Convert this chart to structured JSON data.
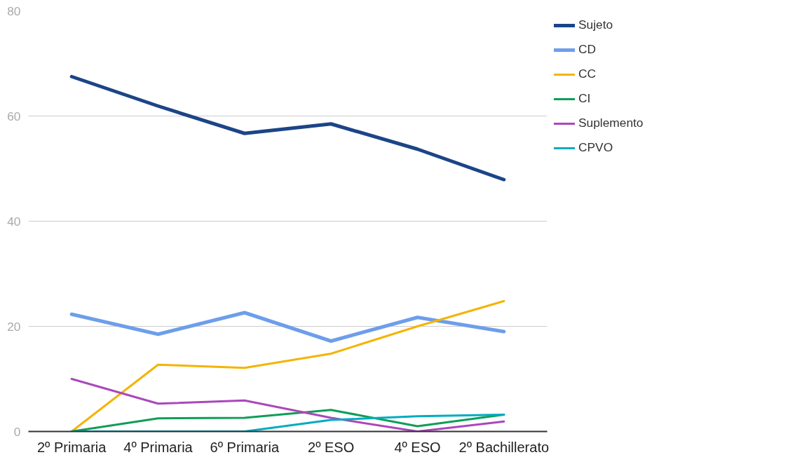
{
  "chart_data": {
    "type": "line",
    "categories": [
      "2º Primaria",
      "4º Primaria",
      "6º Primaria",
      "2º ESO",
      "4º ESO",
      "2º Bachillerato"
    ],
    "series": [
      {
        "name": "Sujeto",
        "color": "#1c4587",
        "values": [
          67.5,
          61.9,
          56.7,
          58.5,
          53.7,
          47.9
        ]
      },
      {
        "name": "CD",
        "color": "#6d9eeb",
        "values": [
          22.3,
          18.5,
          22.6,
          17.2,
          21.7,
          19.0
        ]
      },
      {
        "name": "CC",
        "color": "#f4b400",
        "values": [
          0,
          12.7,
          12.1,
          14.8,
          20.0,
          24.8
        ]
      },
      {
        "name": "CI",
        "color": "#0f9d58",
        "values": [
          0,
          2.5,
          2.6,
          4.1,
          1.0,
          3.2
        ]
      },
      {
        "name": "Suplemento",
        "color": "#ab47bc",
        "values": [
          10.0,
          5.3,
          5.9,
          2.6,
          0,
          1.9
        ]
      },
      {
        "name": "CPVO",
        "color": "#00acc1",
        "values": [
          0,
          0,
          0,
          2.2,
          2.9,
          3.2
        ]
      }
    ],
    "ylim": [
      0,
      80
    ],
    "yticks": [
      0,
      20,
      40,
      60,
      80
    ],
    "grid": "y",
    "legend": "top right"
  }
}
